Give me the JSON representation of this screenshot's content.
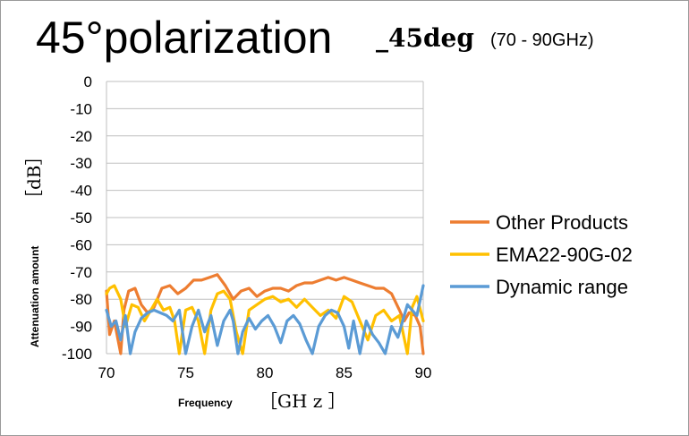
{
  "chart_data": {
    "type": "line",
    "title": "45°polarization",
    "subtitle": "_45deg",
    "range_note": "(70 - 90GHz)",
    "xlabel": "Frequency",
    "xunit": "［GH z ］",
    "ylabel": "Attenuation amount",
    "yunit": "［dB］",
    "xlim": [
      70,
      90
    ],
    "ylim": [
      -100,
      0
    ],
    "x_ticks": [
      70,
      75,
      80,
      85,
      90
    ],
    "y_ticks": [
      0,
      -10,
      -20,
      -30,
      -40,
      -50,
      -60,
      -70,
      -80,
      -90,
      -100
    ],
    "grid": "horizontal",
    "legend_position": "right",
    "series": [
      {
        "name": "Other Products",
        "color": "#ED7D31",
        "x": [
          70,
          70.2,
          70.5,
          70.9,
          71.1,
          71.4,
          71.8,
          72.2,
          72.6,
          73.0,
          73.5,
          74.0,
          74.5,
          75.0,
          75.5,
          76.0,
          76.5,
          77.0,
          77.5,
          78.0,
          78.5,
          79.0,
          79.5,
          80.0,
          80.5,
          81.0,
          81.5,
          82.0,
          82.5,
          83.0,
          83.5,
          84.0,
          84.5,
          85.0,
          85.5,
          86.0,
          86.5,
          87.0,
          87.5,
          88.0,
          88.5,
          88.8,
          89.1,
          89.5,
          89.8,
          90
        ],
        "y": [
          -77,
          -93,
          -88,
          -100,
          -84,
          -77,
          -76,
          -82,
          -85,
          -83,
          -76,
          -75,
          -78,
          -76,
          -73,
          -73,
          -72,
          -71,
          -75,
          -80,
          -77,
          -76,
          -79,
          -77,
          -76,
          -76,
          -77,
          -75,
          -74,
          -74,
          -73,
          -72,
          -73,
          -72,
          -73,
          -74,
          -75,
          -76,
          -76,
          -78,
          -84,
          -88,
          -85,
          -86,
          -90,
          -100
        ]
      },
      {
        "name": "EMA22-90G-02",
        "color": "#FFC000",
        "x": [
          70,
          70.2,
          70.5,
          70.9,
          71.2,
          71.6,
          72.0,
          72.4,
          72.8,
          73.2,
          73.6,
          74.0,
          74.3,
          74.6,
          75.0,
          75.4,
          75.8,
          76.2,
          76.6,
          77.0,
          77.4,
          77.8,
          78.2,
          78.6,
          79.0,
          79.5,
          80.0,
          80.5,
          81.0,
          81.5,
          82.0,
          82.5,
          83.0,
          83.5,
          84.0,
          84.5,
          85.0,
          85.5,
          86.0,
          86.5,
          87.0,
          87.5,
          88.0,
          88.5,
          89.0,
          89.3,
          89.6,
          90
        ],
        "y": [
          -78,
          -76,
          -75,
          -80,
          -90,
          -82,
          -83,
          -88,
          -84,
          -80,
          -84,
          -83,
          -88,
          -100,
          -84,
          -83,
          -88,
          -100,
          -84,
          -78,
          -77,
          -80,
          -92,
          -100,
          -84,
          -82,
          -80,
          -79,
          -81,
          -80,
          -83,
          -80,
          -83,
          -86,
          -84,
          -87,
          -79,
          -81,
          -88,
          -95,
          -86,
          -84,
          -88,
          -86,
          -100,
          -83,
          -79,
          -88
        ]
      },
      {
        "name": "Dynamic range",
        "color": "#5B9BD5",
        "x": [
          70,
          70.3,
          70.6,
          70.9,
          71.2,
          71.5,
          71.8,
          72.2,
          72.6,
          73.0,
          73.4,
          73.8,
          74.2,
          74.6,
          75.0,
          75.4,
          75.8,
          76.2,
          76.6,
          77.0,
          77.4,
          77.8,
          78.0,
          78.3,
          78.6,
          79.0,
          79.4,
          79.8,
          80.2,
          80.6,
          81.0,
          81.4,
          81.8,
          82.2,
          82.6,
          83.0,
          83.4,
          83.8,
          84.2,
          84.6,
          85.0,
          85.3,
          85.6,
          86.0,
          86.4,
          86.8,
          87.2,
          87.6,
          88.0,
          88.4,
          88.7,
          89.0,
          89.3,
          89.6,
          90
        ],
        "y": [
          -84,
          -90,
          -88,
          -95,
          -86,
          -100,
          -92,
          -87,
          -85,
          -84,
          -85,
          -86,
          -88,
          -84,
          -100,
          -90,
          -84,
          -92,
          -86,
          -97,
          -88,
          -84,
          -88,
          -100,
          -92,
          -87,
          -91,
          -88,
          -86,
          -90,
          -96,
          -88,
          -86,
          -89,
          -95,
          -100,
          -90,
          -86,
          -84,
          -85,
          -90,
          -98,
          -88,
          -100,
          -88,
          -93,
          -96,
          -100,
          -90,
          -94,
          -88,
          -82,
          -84,
          -86,
          -75
        ]
      }
    ]
  }
}
